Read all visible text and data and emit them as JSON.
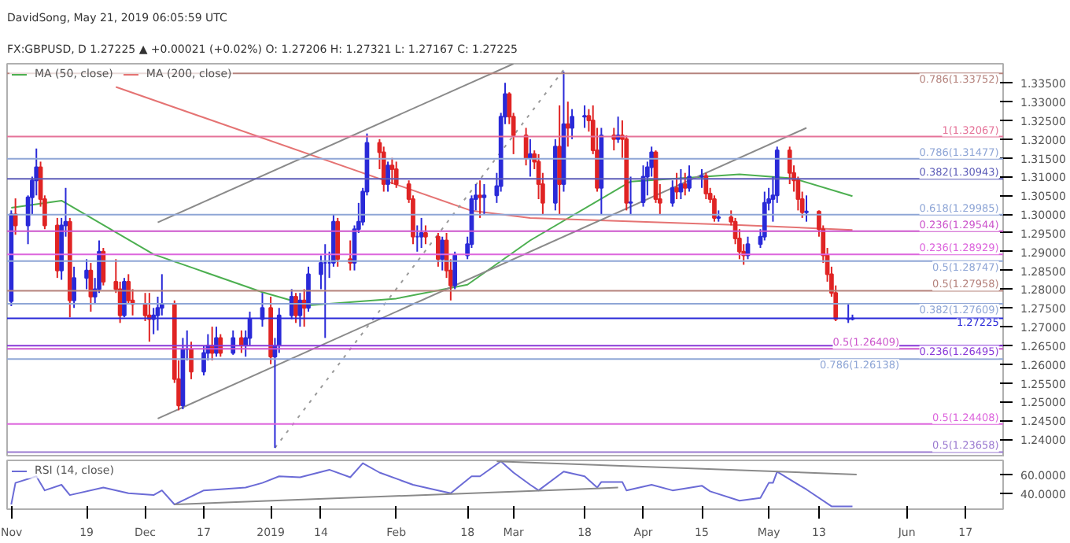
{
  "chart_data": [
    {
      "type": "candlestick",
      "title": "DavidSong, May 21, 2019 06:05:59 UTC",
      "subtitle": "FX:GBPUSD, D  1.27225 ▲ +0.00021 (+0.02%)  O: 1.27206  H: 1.27321  L: 1.27167  C: 1.27225",
      "colors": [
        "#2a2ad8",
        "#e02424",
        "#2a2ad8",
        "#2a2ad8",
        "#2a2ad8",
        "#e02424",
        "#e02424",
        "#e02424",
        "#2a2ad8",
        "#2a2ad8",
        "#e02424",
        "#2a2ad8",
        "#2a2ad8",
        "#e02424",
        "#2a2ad8",
        "#2a2ad8",
        "#e02424",
        "#e02424",
        "#e02424",
        "#2a2ad8",
        "#e02424",
        "#e02424",
        "#e02424",
        "#e02424",
        "#2a2ad8",
        "#2a2ad8",
        "#2a2ad8",
        "#e02424",
        "#e02424",
        "#2a2ad8",
        "#2a2ad8",
        "#e02424",
        "#2a2ad8",
        "#2a2ad8",
        "#e02424",
        "#2a2ad8",
        "#e02424",
        "#2a2ad8",
        "#e02424",
        "#2a2ad8",
        "#2a2ad8",
        "#2a2ad8",
        "#e02424",
        "#2a2ad8",
        "#2a2ad8",
        "#2a2ad8",
        "#e02424",
        "#2a2ad8",
        "#e02424",
        "#2a2ad8",
        "#2a2ad8",
        "#2a2ad8",
        "#2a2ad8",
        "#2a2ad8",
        "#e02424",
        "#e02424",
        "#2a2ad8",
        "#2a2ad8",
        "#2a2ad8",
        "#2a2ad8",
        "#e02424",
        "#e02424",
        "#2a2ad8",
        "#e02424",
        "#e02424",
        "#e02424",
        "#e02424",
        "#2a2ad8",
        "#2a2ad8",
        "#e02424",
        "#e02424",
        "#2a2ad8",
        "#e02424",
        "#e02424",
        "#2a2ad8",
        "#2a2ad8",
        "#2a2ad8",
        "#2a2ad8",
        "#e02424",
        "#2a2ad8",
        "#2a2ad8",
        "#2a2ad8",
        "#2a2ad8",
        "#e02424",
        "#e02424",
        "#e02424",
        "#2a2ad8",
        "#e02424",
        "#e02424",
        "#e02424",
        "#2a2ad8",
        "#e02424",
        "#2a2ad8",
        "#e02424",
        "#2a2ad8",
        "#2a2ad8",
        "#e02424",
        "#e02424",
        "#e02424",
        "#2a2ad8",
        "#e02424",
        "#2a2ad8",
        "#e02424",
        "#e02424",
        "#2a2ad8",
        "#2a2ad8",
        "#2a2ad8",
        "#2a2ad8",
        "#e02424",
        "#e02424",
        "#2a2ad8",
        "#e02424",
        "#2a2ad8",
        "#e02424",
        "#2a2ad8",
        "#2a2ad8",
        "#e02424",
        "#e02424",
        "#e02424",
        "#2a2ad8",
        "#e02424",
        "#e02424",
        "#e02424",
        "#e02424",
        "#2a2ad8",
        "#2a2ad8",
        "#2a2ad8",
        "#2a2ad8",
        "#2a2ad8",
        "#2a2ad8",
        "#e02424",
        "#e02424",
        "#e02424",
        "#e02424",
        "#2a2ad8",
        "#e02424",
        "#e02424",
        "#e02424",
        "#e02424",
        "#e02424",
        "#2a2ad8",
        "#2a2ad8"
      ],
      "x": [
        "2018-11-01",
        "2018-11-02",
        "2018-11-05",
        "2018-11-06",
        "2018-11-07",
        "2018-11-08",
        "2018-11-09",
        "2018-11-12",
        "2018-11-13",
        "2018-11-14",
        "2018-11-15",
        "2018-11-16",
        "2018-11-19",
        "2018-11-20",
        "2018-11-21",
        "2018-11-22",
        "2018-11-23",
        "2018-11-26",
        "2018-11-27",
        "2018-11-28",
        "2018-11-29",
        "2018-11-30",
        "2018-12-03",
        "2018-12-04",
        "2018-12-05",
        "2018-12-06",
        "2018-12-07",
        "2018-12-10",
        "2018-12-11",
        "2018-12-12",
        "2018-12-13",
        "2018-12-14",
        "2018-12-17",
        "2018-12-18",
        "2018-12-19",
        "2018-12-20",
        "2018-12-21",
        "2018-12-24",
        "2018-12-26",
        "2018-12-27",
        "2018-12-28",
        "2018-12-31",
        "2019-01-02",
        "2019-01-03",
        "2019-01-04",
        "2019-01-07",
        "2019-01-08",
        "2019-01-09",
        "2019-01-10",
        "2019-01-11",
        "2019-01-14",
        "2019-01-15",
        "2019-01-16",
        "2019-01-17",
        "2019-01-18",
        "2019-01-21",
        "2019-01-22",
        "2019-01-23",
        "2019-01-24",
        "2019-01-25",
        "2019-01-28",
        "2019-01-29",
        "2019-01-30",
        "2019-01-31",
        "2019-02-01",
        "2019-02-04",
        "2019-02-05",
        "2019-02-06",
        "2019-02-07",
        "2019-02-08",
        "2019-02-11",
        "2019-02-12",
        "2019-02-13",
        "2019-02-14",
        "2019-02-15",
        "2019-02-18",
        "2019-02-19",
        "2019-02-20",
        "2019-02-21",
        "2019-02-22",
        "2019-02-25",
        "2019-02-26",
        "2019-02-27",
        "2019-02-28",
        "2019-03-01",
        "2019-03-04",
        "2019-03-05",
        "2019-03-06",
        "2019-03-07",
        "2019-03-08",
        "2019-03-11",
        "2019-03-12",
        "2019-03-13",
        "2019-03-14",
        "2019-03-15",
        "2019-03-18",
        "2019-03-19",
        "2019-03-20",
        "2019-03-21",
        "2019-03-22",
        "2019-03-25",
        "2019-03-26",
        "2019-03-27",
        "2019-03-28",
        "2019-03-29",
        "2019-04-01",
        "2019-04-02",
        "2019-04-03",
        "2019-04-04",
        "2019-04-05",
        "2019-04-08",
        "2019-04-09",
        "2019-04-10",
        "2019-04-11",
        "2019-04-12",
        "2019-04-15",
        "2019-04-16",
        "2019-04-17",
        "2019-04-18",
        "2019-04-19",
        "2019-04-22",
        "2019-04-23",
        "2019-04-24",
        "2019-04-25",
        "2019-04-26",
        "2019-04-29",
        "2019-04-30",
        "2019-05-01",
        "2019-05-02",
        "2019-05-03",
        "2019-05-06",
        "2019-05-07",
        "2019-05-08",
        "2019-05-09",
        "2019-05-10",
        "2019-05-13",
        "2019-05-14",
        "2019-05-15",
        "2019-05-16",
        "2019-05-17",
        "2019-05-20",
        "2019-05-21"
      ],
      "ohlc": [
        [
          1.2768,
          1.301,
          1.2755,
          1.3
        ],
        [
          1.3,
          1.3042,
          1.2945,
          1.297
        ],
        [
          1.297,
          1.305,
          1.292,
          1.3045
        ],
        [
          1.3045,
          1.31,
          1.3,
          1.309
        ],
        [
          1.309,
          1.3175,
          1.305,
          1.3125
        ],
        [
          1.3125,
          1.314,
          1.302,
          1.304
        ],
        [
          1.304,
          1.305,
          1.296,
          1.297
        ],
        [
          1.297,
          1.299,
          1.283,
          1.285
        ],
        [
          1.285,
          1.299,
          1.2825,
          1.297
        ],
        [
          1.297,
          1.307,
          1.294,
          1.298
        ],
        [
          1.298,
          1.299,
          1.2725,
          1.277
        ],
        [
          1.277,
          1.286,
          1.275,
          1.283
        ],
        [
          1.283,
          1.288,
          1.28,
          1.285
        ],
        [
          1.285,
          1.287,
          1.274,
          1.278
        ],
        [
          1.278,
          1.283,
          1.276,
          1.28
        ],
        [
          1.28,
          1.293,
          1.279,
          1.29
        ],
        [
          1.29,
          1.291,
          1.281,
          1.282
        ],
        [
          1.282,
          1.288,
          1.279,
          1.28
        ],
        [
          1.28,
          1.282,
          1.271,
          1.273
        ],
        [
          1.273,
          1.283,
          1.2725,
          1.282
        ],
        [
          1.282,
          1.284,
          1.276,
          1.277
        ],
        [
          1.277,
          1.28,
          1.273,
          1.276
        ],
        [
          1.276,
          1.279,
          1.2715,
          1.273
        ],
        [
          1.273,
          1.279,
          1.266,
          1.272
        ],
        [
          1.272,
          1.275,
          1.268,
          1.273
        ],
        [
          1.273,
          1.278,
          1.269,
          1.275
        ],
        [
          1.275,
          1.284,
          1.273,
          1.276
        ],
        [
          1.276,
          1.277,
          1.255,
          1.256
        ],
        [
          1.256,
          1.261,
          1.2477,
          1.249
        ],
        [
          1.249,
          1.267,
          1.248,
          1.264
        ],
        [
          1.264,
          1.269,
          1.261,
          1.264
        ],
        [
          1.264,
          1.266,
          1.256,
          1.258
        ],
        [
          1.258,
          1.265,
          1.257,
          1.263
        ],
        [
          1.263,
          1.268,
          1.261,
          1.265
        ],
        [
          1.265,
          1.27,
          1.261,
          1.263
        ],
        [
          1.263,
          1.27,
          1.262,
          1.267
        ],
        [
          1.267,
          1.268,
          1.262,
          1.263
        ],
        [
          1.263,
          1.269,
          1.2625,
          1.267
        ],
        [
          1.267,
          1.269,
          1.263,
          1.265
        ],
        [
          1.265,
          1.269,
          1.262,
          1.267
        ],
        [
          1.267,
          1.274,
          1.265,
          1.272
        ],
        [
          1.272,
          1.279,
          1.27,
          1.275
        ],
        [
          1.275,
          1.278,
          1.26,
          1.262
        ],
        [
          1.262,
          1.267,
          1.2377,
          1.265
        ],
        [
          1.265,
          1.275,
          1.263,
          1.273
        ],
        [
          1.273,
          1.28,
          1.272,
          1.278
        ],
        [
          1.278,
          1.279,
          1.271,
          1.273
        ],
        [
          1.273,
          1.279,
          1.27,
          1.277
        ],
        [
          1.277,
          1.28,
          1.27,
          1.275
        ],
        [
          1.275,
          1.286,
          1.274,
          1.284
        ],
        [
          1.284,
          1.289,
          1.28,
          1.287
        ],
        [
          1.287,
          1.292,
          1.267,
          1.287
        ],
        [
          1.287,
          1.29,
          1.283,
          1.287
        ],
        [
          1.287,
          1.3,
          1.286,
          1.298
        ],
        [
          1.298,
          1.299,
          1.286,
          1.288
        ],
        [
          1.288,
          1.293,
          1.285,
          1.287
        ],
        [
          1.287,
          1.297,
          1.285,
          1.296
        ],
        [
          1.296,
          1.303,
          1.295,
          1.298
        ],
        [
          1.298,
          1.307,
          1.297,
          1.306
        ],
        [
          1.306,
          1.3215,
          1.305,
          1.319
        ],
        [
          1.319,
          1.32,
          1.312,
          1.3165
        ],
        [
          1.3165,
          1.318,
          1.306,
          1.308
        ],
        [
          1.308,
          1.314,
          1.306,
          1.313
        ],
        [
          1.313,
          1.315,
          1.308,
          1.312
        ],
        [
          1.312,
          1.314,
          1.307,
          1.308
        ],
        [
          1.308,
          1.309,
          1.303,
          1.304
        ],
        [
          1.304,
          1.305,
          1.292,
          1.294
        ],
        [
          1.294,
          1.297,
          1.29,
          1.294
        ],
        [
          1.294,
          1.299,
          1.291,
          1.295
        ],
        [
          1.295,
          1.297,
          1.292,
          1.294
        ],
        [
          1.294,
          1.295,
          1.286,
          1.288
        ],
        [
          1.288,
          1.294,
          1.285,
          1.293
        ],
        [
          1.293,
          1.295,
          1.283,
          1.285
        ],
        [
          1.285,
          1.288,
          1.277,
          1.281
        ],
        [
          1.281,
          1.29,
          1.28,
          1.289
        ],
        [
          1.289,
          1.294,
          1.288,
          1.292
        ],
        [
          1.292,
          1.305,
          1.291,
          1.304
        ],
        [
          1.304,
          1.308,
          1.301,
          1.305
        ],
        [
          1.305,
          1.309,
          1.299,
          1.3045
        ],
        [
          1.3045,
          1.308,
          1.3,
          1.305
        ],
        [
          1.305,
          1.311,
          1.303,
          1.3075
        ],
        [
          1.3075,
          1.327,
          1.306,
          1.326
        ],
        [
          1.326,
          1.335,
          1.324,
          1.332
        ],
        [
          1.332,
          1.3325,
          1.324,
          1.326
        ],
        [
          1.326,
          1.327,
          1.316,
          1.321
        ],
        [
          1.321,
          1.323,
          1.313,
          1.315
        ],
        [
          1.315,
          1.32,
          1.31,
          1.316
        ],
        [
          1.316,
          1.317,
          1.312,
          1.314
        ],
        [
          1.314,
          1.316,
          1.304,
          1.308
        ],
        [
          1.308,
          1.311,
          1.3,
          1.303
        ],
        [
          1.303,
          1.32,
          1.301,
          1.318
        ],
        [
          1.318,
          1.329,
          1.3,
          1.308
        ],
        [
          1.308,
          1.338,
          1.306,
          1.324
        ],
        [
          1.324,
          1.33,
          1.318,
          1.323
        ],
        [
          1.323,
          1.328,
          1.32,
          1.326
        ],
        [
          1.326,
          1.329,
          1.323,
          1.3262
        ],
        [
          1.3262,
          1.328,
          1.322,
          1.325
        ],
        [
          1.325,
          1.329,
          1.316,
          1.317
        ],
        [
          1.317,
          1.323,
          1.306,
          1.307
        ],
        [
          1.307,
          1.323,
          1.3,
          1.321
        ],
        [
          1.321,
          1.323,
          1.317,
          1.32
        ],
        [
          1.32,
          1.326,
          1.319,
          1.321
        ],
        [
          1.321,
          1.325,
          1.315,
          1.32
        ],
        [
          1.32,
          1.321,
          1.301,
          1.303
        ],
        [
          1.303,
          1.31,
          1.3,
          1.3032
        ],
        [
          1.3032,
          1.313,
          1.302,
          1.31
        ],
        [
          1.31,
          1.314,
          1.305,
          1.3125
        ],
        [
          1.3125,
          1.318,
          1.31,
          1.3165
        ],
        [
          1.3165,
          1.317,
          1.303,
          1.304
        ],
        [
          1.304,
          1.308,
          1.3,
          1.303
        ],
        [
          1.303,
          1.309,
          1.302,
          1.307
        ],
        [
          1.307,
          1.311,
          1.304,
          1.306
        ],
        [
          1.306,
          1.312,
          1.304,
          1.308
        ],
        [
          1.308,
          1.311,
          1.305,
          1.307
        ],
        [
          1.307,
          1.313,
          1.306,
          1.31
        ],
        [
          1.31,
          1.312,
          1.307,
          1.3102
        ],
        [
          1.3102,
          1.311,
          1.304,
          1.3055
        ],
        [
          1.3055,
          1.307,
          1.303,
          1.304
        ],
        [
          1.304,
          1.305,
          1.298,
          1.299
        ],
        [
          1.299,
          1.301,
          1.298,
          1.2992
        ],
        [
          1.2992,
          1.301,
          1.297,
          1.298
        ],
        [
          1.298,
          1.299,
          1.292,
          1.2935
        ],
        [
          1.2935,
          1.296,
          1.288,
          1.29
        ],
        [
          1.29,
          1.292,
          1.2865,
          1.289
        ],
        [
          1.289,
          1.294,
          1.288,
          1.292
        ],
        [
          1.292,
          1.296,
          1.291,
          1.294
        ],
        [
          1.294,
          1.306,
          1.293,
          1.303
        ],
        [
          1.303,
          1.307,
          1.301,
          1.304
        ],
        [
          1.304,
          1.31,
          1.298,
          1.305
        ],
        [
          1.305,
          1.318,
          1.303,
          1.317
        ],
        [
          1.317,
          1.318,
          1.308,
          1.311
        ],
        [
          1.311,
          1.313,
          1.306,
          1.309
        ],
        [
          1.309,
          1.31,
          1.301,
          1.304
        ],
        [
          1.304,
          1.306,
          1.299,
          1.3005
        ],
        [
          1.3005,
          1.305,
          1.298,
          1.3007
        ],
        [
          1.3007,
          1.301,
          1.294,
          1.296
        ],
        [
          1.296,
          1.297,
          1.287,
          1.289
        ],
        [
          1.289,
          1.291,
          1.282,
          1.284
        ],
        [
          1.284,
          1.286,
          1.278,
          1.279
        ],
        [
          1.279,
          1.281,
          1.2715,
          1.272
        ],
        [
          1.272,
          1.276,
          1.271,
          1.2721
        ],
        [
          1.27206,
          1.27321,
          1.27167,
          1.27225
        ]
      ],
      "series": [
        {
          "name": "MA (50, close)",
          "type": "line",
          "color": "#4caf50",
          "x": [
            "2018-11-01",
            "2018-11-13",
            "2018-12-05",
            "2018-12-31",
            "2019-01-11",
            "2019-02-01",
            "2019-02-18",
            "2019-03-05",
            "2019-03-29",
            "2019-04-24",
            "2019-05-07",
            "2019-05-21"
          ],
          "values": [
            1.3017,
            1.3036,
            1.2893,
            1.2792,
            1.2757,
            1.2775,
            1.2812,
            1.293,
            1.3087,
            1.3106,
            1.3095,
            1.3048
          ]
        },
        {
          "name": "MA (200, close)",
          "type": "line",
          "color": "#e57373",
          "x": [
            "2018-11-26",
            "2019-02-19",
            "2019-03-05",
            "2019-04-24",
            "2019-05-21"
          ],
          "values": [
            1.3339,
            1.3009,
            1.299,
            1.2971,
            1.2958
          ]
        },
        {
          "type": "line",
          "color": "#8a8a8a",
          "x": [
            "2018-12-06",
            "2019-03-01"
          ],
          "values": [
            1.2978,
            1.3401
          ]
        },
        {
          "type": "line",
          "color": "#8a8a8a",
          "x": [
            "2018-12-06",
            "2019-05-10"
          ],
          "values": [
            1.2455,
            1.323
          ]
        },
        {
          "type": "line",
          "color": "#9a9a9a",
          "line_style": "dotted",
          "x": [
            "2019-01-03",
            "2019-03-13"
          ],
          "values": [
            1.2377,
            1.3385
          ]
        }
      ],
      "ref_lines": [
        {
          "axis": "y",
          "value": 1.33752,
          "label": "0.786(1.33752)",
          "color": "#b5837d"
        },
        {
          "axis": "y",
          "value": 1.32067,
          "label": "1(1.32067)",
          "color": "#e57399"
        },
        {
          "axis": "y",
          "value": 1.31477,
          "label": "0.786(1.31477)",
          "color": "#8fa6d6"
        },
        {
          "axis": "y",
          "value": 1.30943,
          "label": "0.382(1.30943)",
          "color": "#5c5cb8"
        },
        {
          "axis": "y",
          "value": 1.29985,
          "label": "0.618(1.29985)",
          "color": "#8fa6d6"
        },
        {
          "axis": "y",
          "value": 1.29544,
          "label": "0.236(1.29544)",
          "color": "#cc55cc"
        },
        {
          "axis": "y",
          "value": 1.28929,
          "label": "0.236(1.28929)",
          "color": "#dd66dd"
        },
        {
          "axis": "y",
          "value": 1.28747,
          "label": "0.5(1.28747)",
          "color": "#8fa6d6"
        },
        {
          "axis": "y",
          "value": 1.27958,
          "label": "0.5(1.27958)",
          "color": "#b5837d"
        },
        {
          "axis": "y",
          "value": 1.27609,
          "label": "0.382(1.27609)",
          "color": "#8fa6d6"
        },
        {
          "axis": "y",
          "value": 1.27225,
          "label": "1.27225",
          "color": "#2a2ad8"
        },
        {
          "axis": "y",
          "value": 1.26495,
          "label": "0.236(1.26495)",
          "color": "#8a3ad8"
        },
        {
          "axis": "y",
          "value": 1.26409,
          "label": "0.5(1.26409)",
          "color": "#cc55cc"
        },
        {
          "axis": "y",
          "value": 1.26138,
          "label": "0.786(1.26138)",
          "color": "#8fa6d6"
        },
        {
          "axis": "y",
          "value": 1.24408,
          "label": "0.5(1.24408)",
          "color": "#dd66dd"
        },
        {
          "axis": "y",
          "value": 1.23658,
          "label": "0.5(1.23658)",
          "color": "#9a7ad0"
        }
      ],
      "xlim": [
        "2018-10-31",
        "2019-06-26"
      ],
      "ylim": [
        1.2352,
        1.3401
      ],
      "yticks": [
        {
          "value": 1.24,
          "label": "1.24000"
        },
        {
          "value": 1.245,
          "label": "1.24500"
        },
        {
          "value": 1.25,
          "label": "1.25000"
        },
        {
          "value": 1.255,
          "label": "1.25500"
        },
        {
          "value": 1.26,
          "label": "1.26000"
        },
        {
          "value": 1.265,
          "label": "1.26500"
        },
        {
          "value": 1.27,
          "label": "1.27000"
        },
        {
          "value": 1.275,
          "label": "1.27500"
        },
        {
          "value": 1.28,
          "label": "1.28000"
        },
        {
          "value": 1.285,
          "label": "1.28500"
        },
        {
          "value": 1.29,
          "label": "1.29000"
        },
        {
          "value": 1.295,
          "label": "1.29500"
        },
        {
          "value": 1.3,
          "label": "1.30000"
        },
        {
          "value": 1.305,
          "label": "1.30500"
        },
        {
          "value": 1.31,
          "label": "1.31000"
        },
        {
          "value": 1.315,
          "label": "1.31500"
        },
        {
          "value": 1.32,
          "label": "1.32000"
        },
        {
          "value": 1.325,
          "label": "1.32500"
        },
        {
          "value": 1.33,
          "label": "1.33000"
        },
        {
          "value": 1.335,
          "label": "1.33500"
        }
      ],
      "tick_labels": "y",
      "legend": "top left"
    },
    {
      "type": "line",
      "series": [
        {
          "name": "RSI (14, close)",
          "color": "#6b6bd6",
          "x": [
            "2018-11-01",
            "2018-11-02",
            "2018-11-07",
            "2018-11-09",
            "2018-11-13",
            "2018-11-15",
            "2018-11-23",
            "2018-11-29",
            "2018-12-05",
            "2018-12-07",
            "2018-12-10",
            "2018-12-17",
            "2018-12-27",
            "2018-12-31",
            "2019-01-04",
            "2019-01-09",
            "2019-01-16",
            "2019-01-21",
            "2019-01-24",
            "2019-01-28",
            "2019-02-05",
            "2019-02-11",
            "2019-02-14",
            "2019-02-19",
            "2019-02-21",
            "2019-02-26",
            "2019-03-01",
            "2019-03-05",
            "2019-03-07",
            "2019-03-13",
            "2019-03-18",
            "2019-03-21",
            "2019-03-22",
            "2019-03-27",
            "2019-03-28",
            "2019-04-03",
            "2019-04-08",
            "2019-04-11",
            "2019-04-15",
            "2019-04-17",
            "2019-04-24",
            "2019-04-29",
            "2019-05-01",
            "2019-05-02",
            "2019-05-03",
            "2019-05-07",
            "2019-05-10",
            "2019-05-16",
            "2019-05-21"
          ],
          "values": [
            28,
            51,
            58,
            43,
            49,
            38,
            46,
            40,
            38,
            43,
            28,
            43,
            46,
            51,
            58,
            57,
            65,
            57,
            72,
            62,
            49,
            43,
            40,
            58,
            58,
            74,
            62,
            49,
            43,
            63,
            58,
            46,
            52,
            52,
            43,
            49,
            43,
            45,
            48,
            42,
            32,
            35,
            51,
            51,
            63,
            52,
            44,
            26,
            26
          ]
        },
        {
          "type": "line",
          "color": "#8a8a8a",
          "x": [
            "2019-02-25",
            "2019-05-22"
          ],
          "values": [
            74,
            60
          ]
        },
        {
          "type": "line",
          "color": "#8a8a8a",
          "x": [
            "2018-12-10",
            "2019-03-26"
          ],
          "values": [
            28,
            46
          ]
        }
      ],
      "xlim": [
        "2018-10-31",
        "2019-06-26"
      ],
      "xticks": [
        {
          "value": "2018-11-01",
          "label": "Nov"
        },
        {
          "value": "2018-11-19",
          "label": "19"
        },
        {
          "value": "2018-12-03",
          "label": "Dec"
        },
        {
          "value": "2018-12-17",
          "label": "17"
        },
        {
          "value": "2019-01-02",
          "label": "2019"
        },
        {
          "value": "2019-01-14",
          "label": "14"
        },
        {
          "value": "2019-02-01",
          "label": "Feb"
        },
        {
          "value": "2019-02-18",
          "label": "18"
        },
        {
          "value": "2019-03-01",
          "label": "Mar"
        },
        {
          "value": "2019-03-18",
          "label": "18"
        },
        {
          "value": "2019-04-01",
          "label": "Apr"
        },
        {
          "value": "2019-04-15",
          "label": "15"
        },
        {
          "value": "2019-05-01",
          "label": "May"
        },
        {
          "value": "2019-05-13",
          "label": "13"
        },
        {
          "value": "2019-06-03",
          "label": "Jun"
        },
        {
          "value": "2019-06-17",
          "label": "17"
        }
      ],
      "ylim": [
        23,
        75
      ],
      "yticks": [
        {
          "value": 40,
          "label": "40.0000"
        },
        {
          "value": 60,
          "label": "60.0000"
        }
      ],
      "legend": "top left"
    }
  ]
}
